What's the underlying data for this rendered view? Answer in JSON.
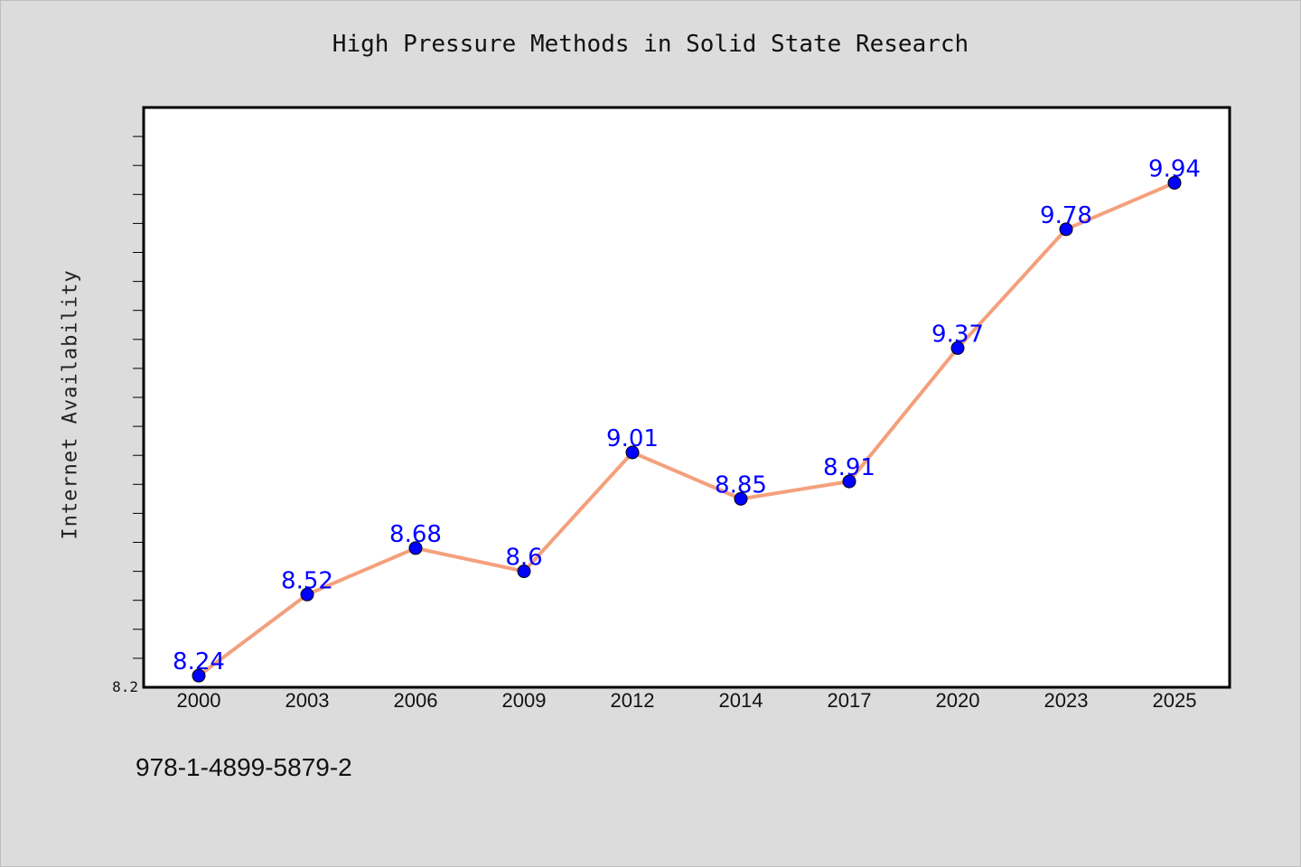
{
  "chart_data": {
    "type": "line",
    "title": "High Pressure Methods in Solid State Research",
    "xlabel": "",
    "ylabel": "Internet Availability",
    "categories": [
      "2000",
      "2003",
      "2006",
      "2009",
      "2012",
      "2014",
      "2017",
      "2020",
      "2023",
      "2025"
    ],
    "series": [
      {
        "values": [
          8.24,
          8.52,
          8.68,
          8.6,
          9.01,
          8.85,
          8.91,
          9.37,
          9.78,
          9.94
        ],
        "data_labels": [
          "8.24",
          "8.52",
          "8.68",
          "8.6",
          "9.01",
          "8.85",
          "8.91",
          "9.37",
          "9.78",
          "9.94"
        ],
        "line_color": "#f4a07c",
        "marker_color": "#0000ff"
      }
    ],
    "ylim": [
      8.2,
      10.2
    ],
    "y_tick_labels": [
      "8.2"
    ],
    "grid": false,
    "legend": "none",
    "label_color": "#0000ff"
  },
  "footer": {
    "code": "978-1-4899-5879-2"
  },
  "colors": {
    "background": "#dcdcdc",
    "plot_background": "#ffffff",
    "axis": "#000000"
  }
}
